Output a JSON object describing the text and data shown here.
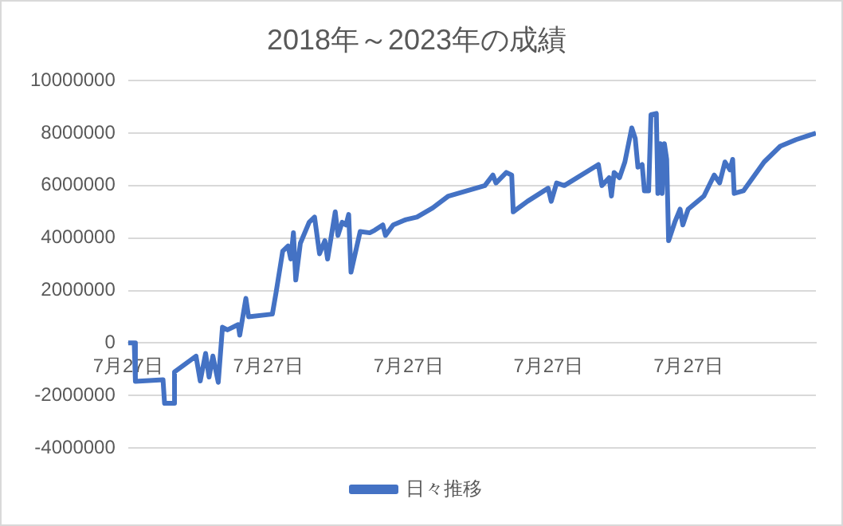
{
  "chart_data": {
    "type": "line",
    "title": "2018年～2023年の成績",
    "x": [
      "2018-07-27",
      "2018-08-12",
      "2018-08-15",
      "2018-10-26",
      "2018-10-30",
      "2018-11-23",
      "2018-11-25",
      "2019-01-20",
      "2019-01-31",
      "2019-02-14",
      "2019-02-23",
      "2019-03-05",
      "2019-03-19",
      "2019-03-30",
      "2019-04-12",
      "2019-05-10",
      "2019-05-14",
      "2019-05-30",
      "2019-06-06",
      "2019-08-07",
      "2019-08-17",
      "2019-09-03",
      "2019-09-17",
      "2019-09-24",
      "2019-10-01",
      "2019-10-07",
      "2019-10-19",
      "2019-11-11",
      "2019-11-25",
      "2019-12-08",
      "2019-12-22",
      "2019-12-29",
      "2020-01-18",
      "2020-01-25",
      "2020-02-05",
      "2020-02-15",
      "2020-02-22",
      "2020-02-28",
      "2020-03-23",
      "2020-04-17",
      "2020-04-30",
      "2020-05-21",
      "2020-05-28",
      "2020-06-17",
      "2020-07-20",
      "2020-08-18",
      "2020-09-28",
      "2020-11-08",
      "2021-02-11",
      "2021-03-04",
      "2021-03-12",
      "2021-04-08",
      "2021-04-22",
      "2021-04-26",
      "2021-06-02",
      "2021-07-26",
      "2021-08-03",
      "2021-08-17",
      "2021-09-06",
      "2021-12-04",
      "2021-12-13",
      "2022-01-01",
      "2022-01-07",
      "2022-01-14",
      "2022-01-28",
      "2022-02-11",
      "2022-03-01",
      "2022-03-10",
      "2022-03-17",
      "2022-03-28",
      "2022-04-03",
      "2022-04-14",
      "2022-04-20",
      "2022-05-04",
      "2022-05-08",
      "2022-05-14",
      "2022-05-19",
      "2022-05-25",
      "2022-05-31",
      "2022-06-05",
      "2022-06-21",
      "2022-07-05",
      "2022-07-12",
      "2022-07-26",
      "2022-09-05",
      "2022-10-02",
      "2022-10-16",
      "2022-10-30",
      "2022-11-12",
      "2022-11-19",
      "2022-11-23",
      "2022-12-17",
      "2023-02-09",
      "2023-03-23",
      "2023-05-03",
      "2023-06-24"
    ],
    "series": [
      {
        "name": "日々推移",
        "color": "#4472c4",
        "values": [
          0,
          0,
          -1460000,
          -1400000,
          -2300000,
          -2300000,
          -1100000,
          -500000,
          -1450000,
          -400000,
          -1300000,
          -500000,
          -1500000,
          600000,
          500000,
          700000,
          300000,
          1700000,
          1000000,
          1100000,
          1950000,
          3500000,
          3700000,
          3200000,
          4200000,
          2400000,
          3800000,
          4600000,
          4800000,
          3400000,
          3900000,
          3200000,
          5000000,
          4100000,
          4600000,
          4500000,
          4900000,
          2700000,
          4250000,
          4200000,
          4300000,
          4500000,
          4100000,
          4500000,
          4700000,
          4800000,
          5150000,
          5600000,
          6000000,
          6400000,
          6100000,
          6500000,
          6400000,
          5000000,
          5400000,
          5900000,
          5400000,
          6100000,
          6000000,
          6800000,
          6000000,
          6300000,
          5600000,
          6500000,
          6300000,
          6900000,
          8200000,
          7800000,
          6700000,
          6800000,
          5800000,
          5800000,
          8700000,
          8750000,
          5700000,
          7600000,
          5700000,
          7600000,
          7000000,
          3900000,
          4600000,
          5100000,
          4500000,
          5100000,
          5600000,
          6400000,
          6100000,
          6900000,
          6600000,
          7000000,
          5700000,
          5800000,
          6900000,
          7500000,
          7750000,
          8000000
        ]
      }
    ],
    "xlim": [
      "2018-07-27",
      "2023-06-24"
    ],
    "xticks": [
      {
        "value": "2018-07-27",
        "label": "7月27日"
      },
      {
        "value": "2019-07-27",
        "label": "7月27日"
      },
      {
        "value": "2020-07-27",
        "label": "7月27日"
      },
      {
        "value": "2021-07-27",
        "label": "7月27日"
      },
      {
        "value": "2022-07-27",
        "label": "7月27日"
      }
    ],
    "ylim": [
      -4000000,
      10000000
    ],
    "yticks": [
      -4000000,
      -2000000,
      0,
      2000000,
      4000000,
      6000000,
      8000000,
      10000000
    ],
    "grid": "y",
    "legend": "bottom",
    "marker": "none",
    "line_style": "solid"
  }
}
